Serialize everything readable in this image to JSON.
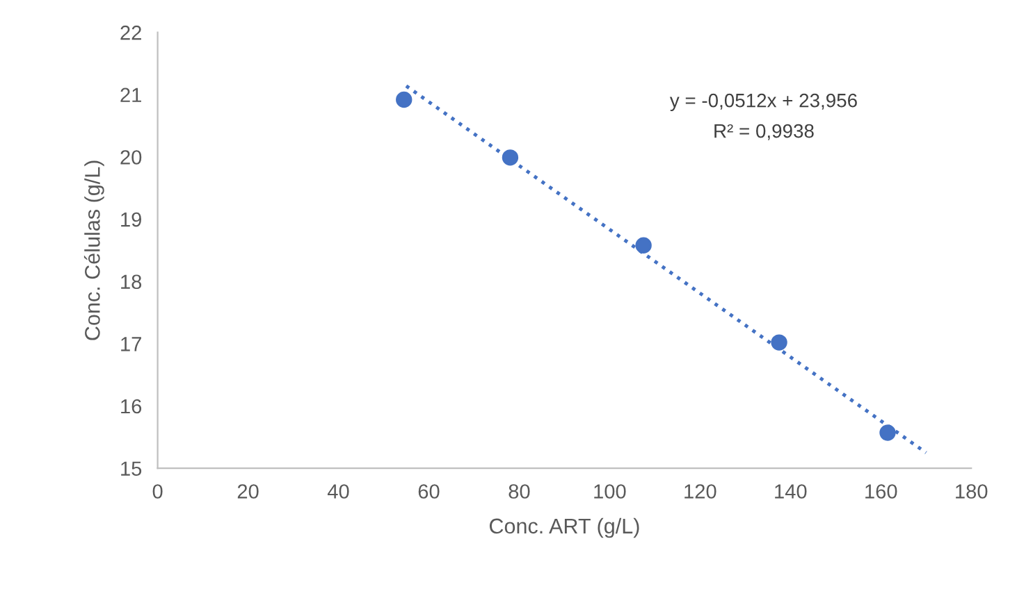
{
  "chart_data": {
    "type": "scatter",
    "xlabel": "Conc. ART (g/L)",
    "ylabel": "Conc. Células (g/L)",
    "annotations": [
      "y = -0,0512x + 23,956",
      "R² = 0,9938"
    ],
    "xlim": [
      0,
      180
    ],
    "xticks": [
      0,
      20,
      40,
      60,
      80,
      100,
      120,
      140,
      160,
      180
    ],
    "ylim": [
      15,
      22
    ],
    "yticks": [
      15,
      16,
      17,
      18,
      19,
      20,
      21,
      22
    ],
    "grid": false,
    "legend": false,
    "series": [
      {
        "color": "#4472c4",
        "marker": "circle",
        "x": [
          54.5,
          78,
          107.5,
          137.5,
          161.5
        ],
        "values": [
          20.92,
          19.99,
          18.58,
          17.02,
          15.57
        ]
      },
      {
        "type": "line",
        "color": "#4472c4",
        "line_style": "dotted",
        "marker": "none",
        "x": [
          55,
          170
        ],
        "values": [
          21.14,
          15.25
        ]
      }
    ]
  }
}
